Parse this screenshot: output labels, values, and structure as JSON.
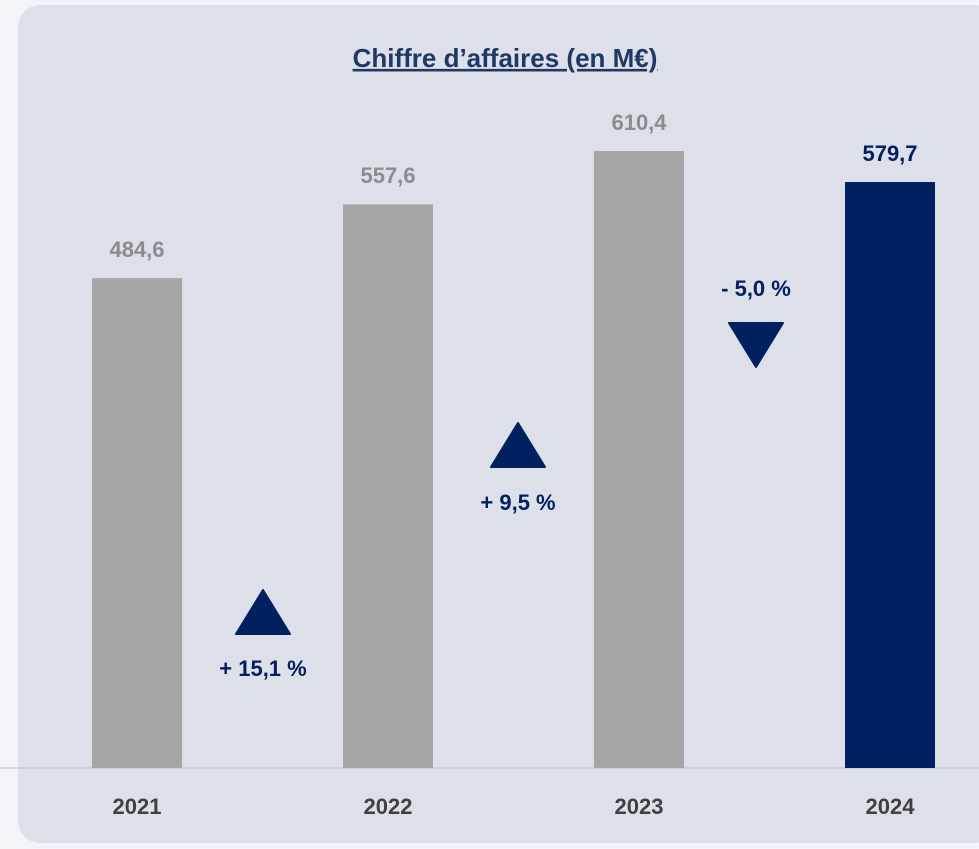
{
  "chart_data": {
    "type": "bar",
    "title": "Chiffre d’affaires (en M€)",
    "categories": [
      "2021",
      "2022",
      "2023",
      "2024"
    ],
    "values": [
      484.6,
      557.6,
      610.4,
      579.7
    ],
    "value_labels": [
      "484,6",
      "557,6",
      "610,4",
      "579,7"
    ],
    "colors": [
      "#a6a6a6",
      "#a6a6a6",
      "#a6a6a6",
      "#002060"
    ],
    "label_colors": [
      "#8c8c8c",
      "#8c8c8c",
      "#8c8c8c",
      "#002060"
    ],
    "annotations": [
      "+ 15,1 %",
      "+ 9,5 %",
      "- 5,0 %"
    ],
    "annotation_color": "#002060"
  }
}
